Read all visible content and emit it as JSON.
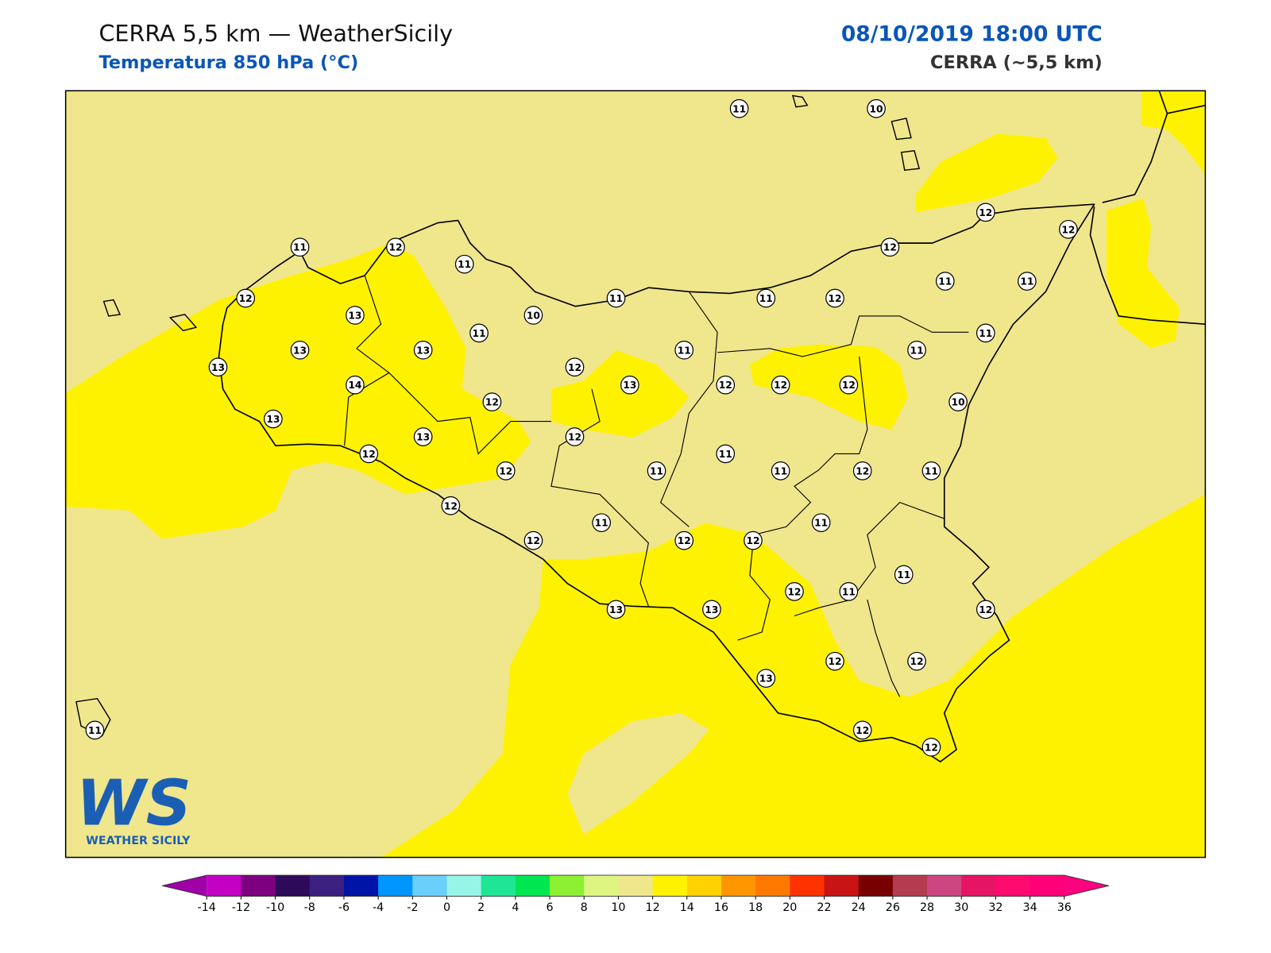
{
  "header": {
    "title": "CERRA 5,5 km — WeatherSicily",
    "subtitle": "Temperatura 850 hPa (°C)",
    "datetime": "08/10/2019 18:00 UTC",
    "model": "CERRA (~5,5 km)"
  },
  "stations": {
    "values": [
      11,
      10,
      12,
      12,
      11,
      12,
      11,
      12,
      12,
      11,
      11,
      12,
      11,
      11,
      13,
      10,
      11,
      11,
      13,
      13,
      11,
      11,
      13,
      12,
      14,
      13,
      12,
      12,
      12,
      12,
      10,
      13,
      13,
      12,
      12,
      11,
      12,
      11,
      11,
      12,
      11,
      12,
      11,
      11,
      12,
      12,
      12,
      11,
      12,
      11,
      13,
      13,
      12,
      12,
      12,
      13,
      12,
      12,
      11
    ]
  },
  "colorbar": {
    "ticks": [
      -14,
      -12,
      -10,
      -8,
      -6,
      -4,
      -2,
      0,
      2,
      4,
      6,
      8,
      10,
      12,
      14,
      16,
      18,
      20,
      22,
      24,
      26,
      28,
      30,
      32,
      34,
      36
    ],
    "colors": [
      "#c400c4",
      "#7d0080",
      "#2e0a5a",
      "#3b2080",
      "#0014a8",
      "#0096ff",
      "#6acffa",
      "#96f5e6",
      "#1ee696",
      "#00e650",
      "#8ef032",
      "#def582",
      "#f0e68c",
      "#fff200",
      "#ffd200",
      "#ff9600",
      "#ff7800",
      "#ff3200",
      "#c81414",
      "#780000",
      "#b43c50",
      "#cd4682",
      "#e61464",
      "#ff0a6e",
      "#ff0078"
    ],
    "under_color": "#a000a8",
    "over_color": "#ff0080"
  },
  "logo": {
    "mark": "WS",
    "text": "WEATHER SICILY"
  }
}
